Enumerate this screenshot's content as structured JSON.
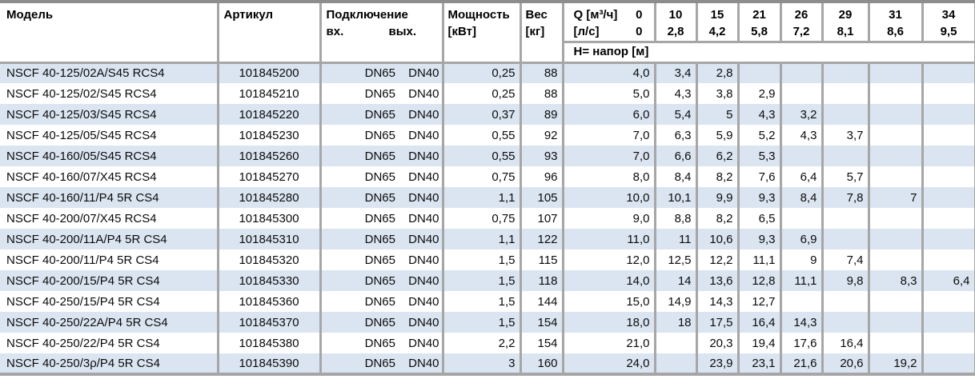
{
  "colors": {
    "stripe_blue": "#dbe5f1",
    "grid_gray": "#a6a6a6",
    "top_rule_gray": "#8d8d8d"
  },
  "table": {
    "headers": {
      "model": "Модель",
      "article": "Артикул",
      "connection": "Подключение",
      "inlet": "вх.",
      "outlet": "вых.",
      "power_line1": "Мощность",
      "power_line2": "[кВт]",
      "weight_line1": "Вес",
      "weight_line2": "[кг]",
      "q_l1_label": "Q [м³/ч]",
      "q_l1_value": "0",
      "q_l2_label": "[л/с]",
      "q_l2_value": "0",
      "head_label": "H= напор [м]",
      "flow_cols": [
        {
          "m3h": "10",
          "ls": "2,8"
        },
        {
          "m3h": "15",
          "ls": "4,2"
        },
        {
          "m3h": "21",
          "ls": "5,8"
        },
        {
          "m3h": "26",
          "ls": "7,2"
        },
        {
          "m3h": "29",
          "ls": "8,1"
        },
        {
          "m3h": "31",
          "ls": "8,6"
        },
        {
          "m3h": "34",
          "ls": "9,5"
        }
      ]
    },
    "rows": [
      {
        "model": "NSCF 40-125/02A/S45 RCS4",
        "article": "101845200",
        "inlet": "DN65",
        "outlet": "DN40",
        "power": "0,25",
        "weight": "88",
        "heads": [
          "4,0",
          "3,4",
          "2,8",
          "",
          "",
          "",
          "",
          ""
        ]
      },
      {
        "model": "NSCF 40-125/02/S45 RCS4",
        "article": "101845210",
        "inlet": "DN65",
        "outlet": "DN40",
        "power": "0,25",
        "weight": "88",
        "heads": [
          "5,0",
          "4,3",
          "3,8",
          "2,9",
          "",
          "",
          "",
          ""
        ]
      },
      {
        "model": "NSCF 40-125/03/S45 RCS4",
        "article": "101845220",
        "inlet": "DN65",
        "outlet": "DN40",
        "power": "0,37",
        "weight": "89",
        "heads": [
          "6,0",
          "5,4",
          "5",
          "4,3",
          "3,2",
          "",
          "",
          ""
        ]
      },
      {
        "model": "NSCF 40-125/05/S45 RCS4",
        "article": "101845230",
        "inlet": "DN65",
        "outlet": "DN40",
        "power": "0,55",
        "weight": "92",
        "heads": [
          "7,0",
          "6,3",
          "5,9",
          "5,2",
          "4,3",
          "3,7",
          "",
          ""
        ]
      },
      {
        "model": "NSCF 40-160/05/S45 RCS4",
        "article": "101845260",
        "inlet": "DN65",
        "outlet": "DN40",
        "power": "0,55",
        "weight": "93",
        "heads": [
          "7,0",
          "6,6",
          "6,2",
          "5,3",
          "",
          "",
          "",
          ""
        ]
      },
      {
        "model": "NSCF 40-160/07/X45 RCS4",
        "article": "101845270",
        "inlet": "DN65",
        "outlet": "DN40",
        "power": "0,75",
        "weight": "96",
        "heads": [
          "8,0",
          "8,4",
          "8,2",
          "7,6",
          "6,4",
          "5,7",
          "",
          ""
        ]
      },
      {
        "model": "NSCF 40-160/11/P4 5R CS4",
        "article": "101845280",
        "inlet": "DN65",
        "outlet": "DN40",
        "power": "1,1",
        "weight": "105",
        "heads": [
          "10,0",
          "10,1",
          "9,9",
          "9,3",
          "8,4",
          "7,8",
          "7",
          ""
        ]
      },
      {
        "model": "NSCF 40-200/07/X45 RCS4",
        "article": "101845300",
        "inlet": "DN65",
        "outlet": "DN40",
        "power": "0,75",
        "weight": "107",
        "heads": [
          "9,0",
          "8,8",
          "8,2",
          "6,5",
          "",
          "",
          "",
          ""
        ]
      },
      {
        "model": "NSCF 40-200/11A/P4 5R CS4",
        "article": "101845310",
        "inlet": "DN65",
        "outlet": "DN40",
        "power": "1,1",
        "weight": "122",
        "heads": [
          "11,0",
          "11",
          "10,6",
          "9,3",
          "6,9",
          "",
          "",
          ""
        ]
      },
      {
        "model": "NSCF 40-200/11/P4 5R CS4",
        "article": "101845320",
        "inlet": "DN65",
        "outlet": "DN40",
        "power": "1,5",
        "weight": "115",
        "heads": [
          "12,0",
          "12,5",
          "12,2",
          "11,1",
          "9",
          "7,4",
          "",
          ""
        ]
      },
      {
        "model": "NSCF 40-200/15/P4 5R CS4",
        "article": "101845330",
        "inlet": "DN65",
        "outlet": "DN40",
        "power": "1,5",
        "weight": "118",
        "heads": [
          "14,0",
          "14",
          "13,6",
          "12,8",
          "11,1",
          "9,8",
          "8,3",
          "6,4"
        ]
      },
      {
        "model": "NSCF 40-250/15/P4 5R CS4",
        "article": "101845360",
        "inlet": "DN65",
        "outlet": "DN40",
        "power": "1,5",
        "weight": "144",
        "heads": [
          "15,0",
          "14,9",
          "14,3",
          "12,7",
          "",
          "",
          "",
          ""
        ]
      },
      {
        "model": "NSCF 40-250/22A/P4 5R CS4",
        "article": "101845370",
        "inlet": "DN65",
        "outlet": "DN40",
        "power": "1,5",
        "weight": "154",
        "heads": [
          "18,0",
          "18",
          "17,5",
          "16,4",
          "14,3",
          "",
          "",
          ""
        ]
      },
      {
        "model": "NSCF 40-250/22/P4 5R CS4",
        "article": "101845380",
        "inlet": "DN65",
        "outlet": "DN40",
        "power": "2,2",
        "weight": "154",
        "heads": [
          "21,0",
          "",
          "20,3",
          "19,4",
          "17,6",
          "16,4",
          "",
          ""
        ]
      },
      {
        "model": "NSCF 40-250/3ρ/P4 5R CS4",
        "article": "101845390",
        "inlet": "DN65",
        "outlet": "DN40",
        "power": "3",
        "weight": "160",
        "heads": [
          "24,0",
          "",
          "23,9",
          "23,1",
          "21,6",
          "20,6",
          "19,2",
          ""
        ]
      }
    ]
  }
}
